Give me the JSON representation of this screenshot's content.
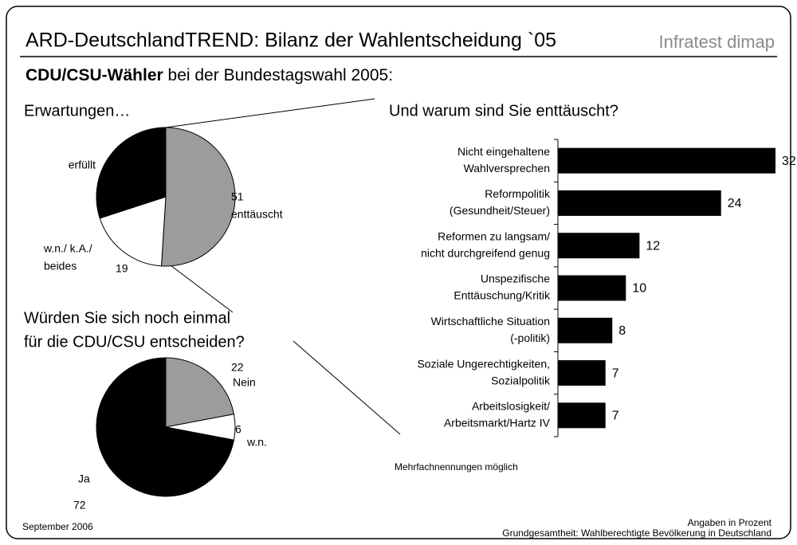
{
  "header": {
    "title": "ARD-DeutschlandTREND: Bilanz der Wahlentscheidung `05",
    "brand": "Infratest dimap",
    "subtitle_bold": "CDU/CSU-Wähler",
    "subtitle": " bei der Bundestagswahl 2005:"
  },
  "footer": {
    "date": "September 2006",
    "unit": "Angaben in Prozent",
    "base": "Grundgesamtheit: Wahlberechtigte Bevölkerung in Deutschland"
  },
  "chart_data": [
    {
      "type": "pie",
      "title": [
        "Erwartungen…"
      ],
      "categories": [
        [
          "enttäuscht"
        ],
        [
          "w.n./ k.A./",
          "beides"
        ],
        [
          "erfüllt"
        ]
      ],
      "values": [
        51,
        19,
        30
      ],
      "colors": [
        "#9c9c9c",
        "#ffffff",
        "#000000"
      ]
    },
    {
      "type": "pie",
      "title": [
        "Würden Sie sich noch einmal",
        "für die CDU/CSU entscheiden?"
      ],
      "categories": [
        [
          "Nein"
        ],
        [
          "w.n."
        ],
        [
          "Ja"
        ]
      ],
      "values": [
        22,
        6,
        72
      ],
      "colors": [
        "#9c9c9c",
        "#ffffff",
        "#000000"
      ]
    },
    {
      "type": "hbar",
      "title": [
        "Und warum sind Sie enttäuscht?"
      ],
      "categories": [
        [
          "Nicht eingehaltene",
          "Wahlversprechen"
        ],
        [
          "Reformpolitik",
          "(Gesundheit/Steuer)"
        ],
        [
          "Reformen zu langsam/",
          "nicht durchgreifend genug"
        ],
        [
          "Unspezifische",
          "Enttäuschung/Kritik"
        ],
        [
          "Wirtschaftliche Situation",
          "(-politik)"
        ],
        [
          "Soziale Ungerechtigkeiten,",
          "Sozialpolitik"
        ],
        [
          "Arbeitslosigkeit/",
          "Arbeitsmarkt/Hartz IV"
        ]
      ],
      "values": [
        32,
        24,
        12,
        10,
        8,
        7,
        7
      ],
      "color": "#000000",
      "note": "Mehrfachnennungen möglich"
    }
  ]
}
